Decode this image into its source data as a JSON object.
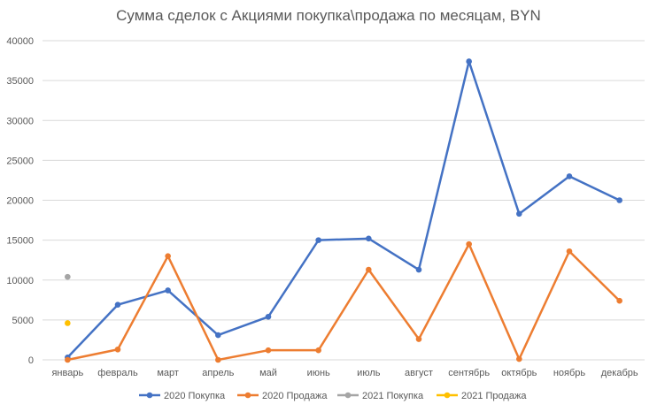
{
  "chart_data": {
    "type": "line",
    "title": "Сумма сделок с Акциями покупка\\продажа по месяцам, BYN",
    "categories": [
      "январь",
      "февраль",
      "март",
      "апрель",
      "май",
      "июнь",
      "июль",
      "август",
      "сентябрь",
      "октябрь",
      "ноябрь",
      "декабрь"
    ],
    "ylim": [
      0,
      40000
    ],
    "yticks": [
      0,
      5000,
      10000,
      15000,
      20000,
      25000,
      30000,
      35000,
      40000
    ],
    "grid": true,
    "legend_position": "bottom",
    "series": [
      {
        "name": "2020 Покупка",
        "color": "#4472C4",
        "values": [
          300,
          6900,
          8700,
          3100,
          5400,
          15000,
          15200,
          11300,
          37400,
          18300,
          23000,
          20000
        ]
      },
      {
        "name": "2020 Продажа",
        "color": "#ED7D31",
        "values": [
          0,
          1300,
          13000,
          0,
          1200,
          1200,
          11300,
          2600,
          14500,
          100,
          13600,
          7400
        ]
      },
      {
        "name": "2021 Покупка",
        "color": "#A5A5A5",
        "values": [
          10400,
          null,
          null,
          null,
          null,
          null,
          null,
          null,
          null,
          null,
          null,
          null
        ]
      },
      {
        "name": "2021 Продажа",
        "color": "#FFC000",
        "values": [
          4600,
          null,
          null,
          null,
          null,
          null,
          null,
          null,
          null,
          null,
          null,
          null
        ]
      }
    ]
  }
}
